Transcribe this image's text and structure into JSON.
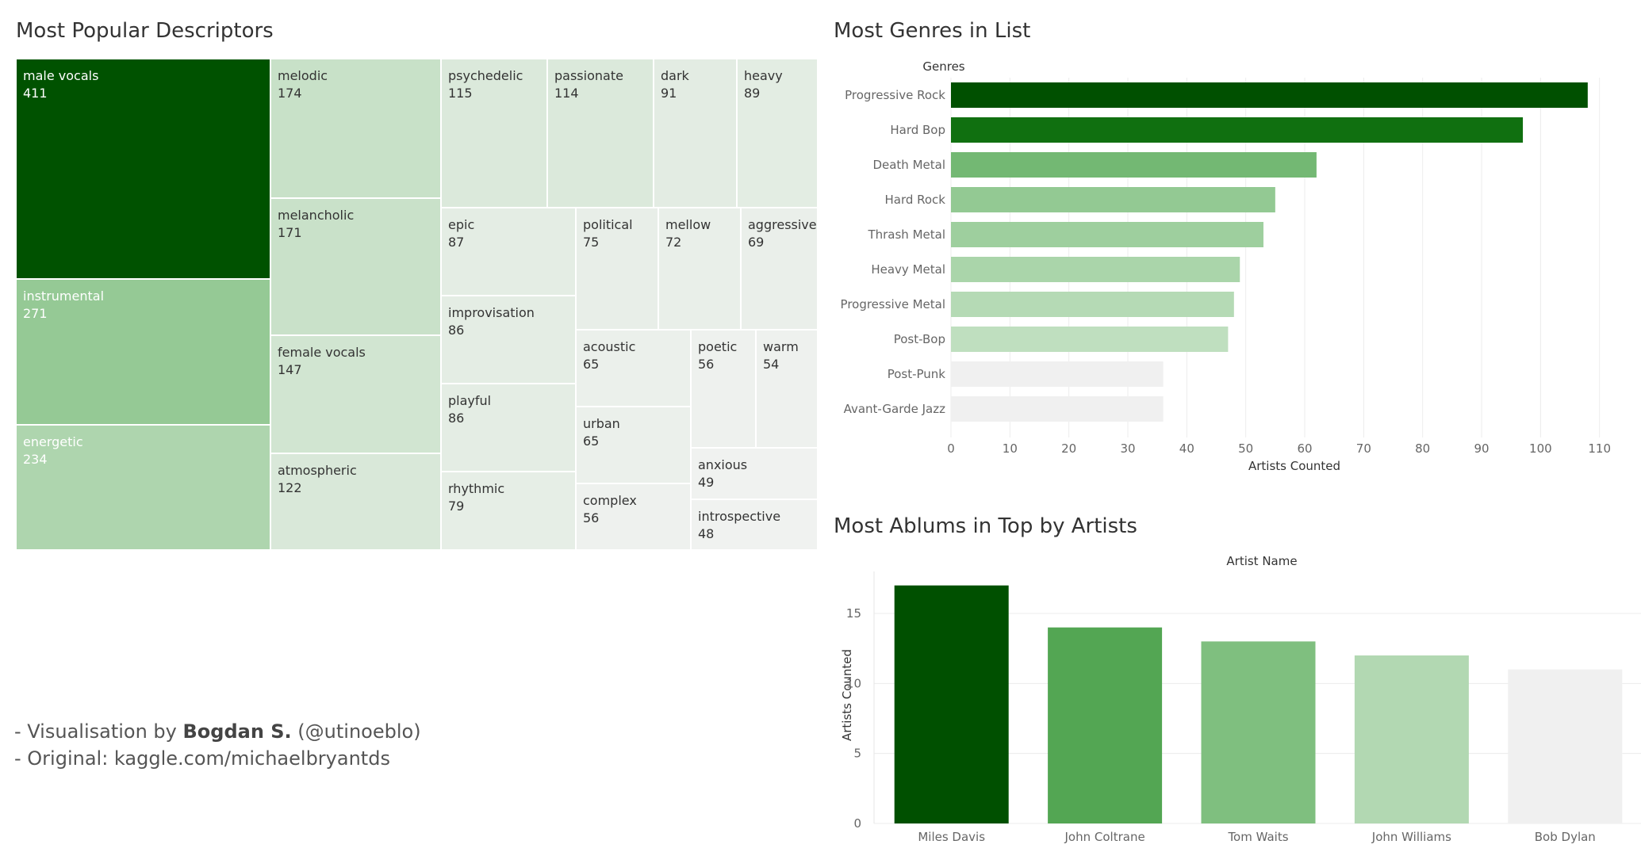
{
  "footer": {
    "line1_prefix": "- Visualisation by ",
    "line1_author": "Bogdan S.",
    "line1_suffix": " (@utinoeblo)",
    "line2": "- Original: kaggle.com/michaelbryantds"
  },
  "chart_data": [
    {
      "type": "treemap",
      "title": "Most Popular Descriptors",
      "items": [
        {
          "label": "male vocals",
          "value": 411
        },
        {
          "label": "instrumental",
          "value": 271
        },
        {
          "label": "energetic",
          "value": 234
        },
        {
          "label": "melodic",
          "value": 174
        },
        {
          "label": "melancholic",
          "value": 171
        },
        {
          "label": "female vocals",
          "value": 147
        },
        {
          "label": "atmospheric",
          "value": 122
        },
        {
          "label": "psychedelic",
          "value": 115
        },
        {
          "label": "passionate",
          "value": 114
        },
        {
          "label": "dark",
          "value": 91
        },
        {
          "label": "heavy",
          "value": 89
        },
        {
          "label": "epic",
          "value": 87
        },
        {
          "label": "political",
          "value": 75
        },
        {
          "label": "mellow",
          "value": 72
        },
        {
          "label": "aggressive",
          "value": 69
        },
        {
          "label": "improvisation",
          "value": 86
        },
        {
          "label": "acoustic",
          "value": 65
        },
        {
          "label": "poetic",
          "value": 56
        },
        {
          "label": "warm",
          "value": 54
        },
        {
          "label": "playful",
          "value": 86
        },
        {
          "label": "urban",
          "value": 65
        },
        {
          "label": "anxious",
          "value": 49
        },
        {
          "label": "rhythmic",
          "value": 79
        },
        {
          "label": "complex",
          "value": 56
        },
        {
          "label": "introspective",
          "value": 48
        }
      ]
    },
    {
      "type": "bar",
      "orientation": "horizontal",
      "title": "Most Genres in List",
      "ylabel": "Genres",
      "xlabel": "Artists Counted",
      "categories": [
        "Progressive Rock",
        "Hard Bop",
        "Death Metal",
        "Hard Rock",
        "Thrash Metal",
        "Heavy Metal",
        "Progressive Metal",
        "Post-Bop",
        "Post-Punk",
        "Avant-Garde Jazz"
      ],
      "values": [
        108,
        97,
        62,
        55,
        53,
        49,
        48,
        47,
        36,
        36
      ],
      "xlim": [
        0,
        113
      ],
      "xticks": [
        0,
        10,
        20,
        30,
        40,
        50,
        60,
        70,
        80,
        90,
        100,
        110
      ],
      "grid": true
    },
    {
      "type": "bar",
      "orientation": "vertical",
      "title": "Most Ablums in Top by Artists",
      "xlabel": "Artist Name",
      "ylabel": "Artists Counted",
      "categories": [
        "Miles Davis",
        "John Coltrane",
        "Tom Waits",
        "John Williams",
        "Bob Dylan"
      ],
      "values": [
        17,
        14,
        13,
        12,
        11
      ],
      "ylim": [
        0,
        18
      ],
      "yticks": [
        0,
        5,
        10,
        15
      ],
      "grid": true
    }
  ]
}
